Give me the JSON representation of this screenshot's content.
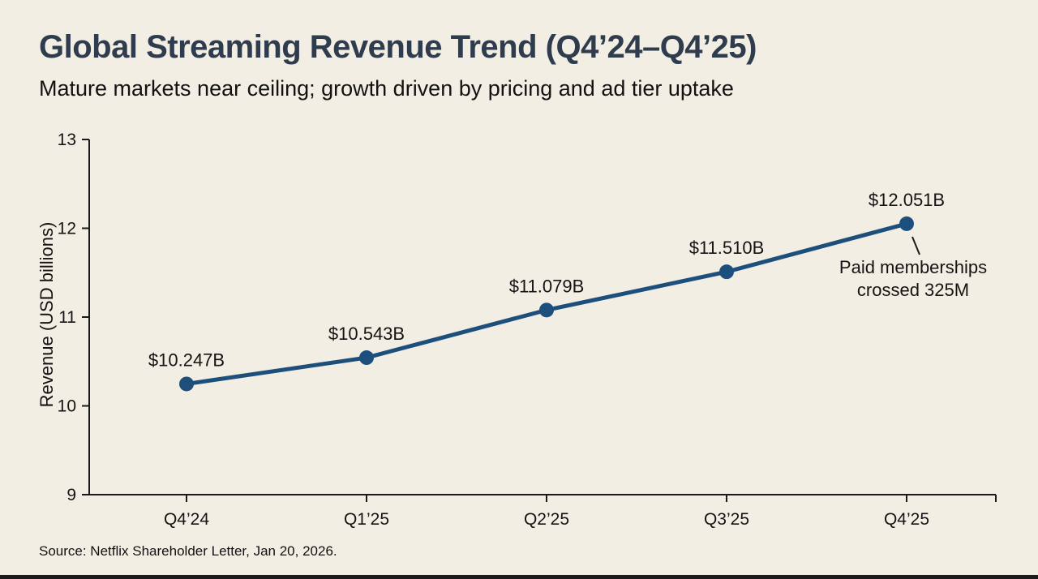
{
  "header": {
    "title": "Global Streaming Revenue Trend (Q4’24–Q4’25)",
    "subtitle": "Mature markets near ceiling; growth driven by pricing and ad tier uptake"
  },
  "footer": {
    "source": "Source: Netflix Shareholder Letter, Jan 20, 2026."
  },
  "chart_data": {
    "type": "line",
    "title": "Global Streaming Revenue Trend (Q4’24–Q4’25)",
    "subtitle": "Mature markets near ceiling; growth driven by pricing and ad tier uptake",
    "categories": [
      "Q4’24",
      "Q1’25",
      "Q2’25",
      "Q3’25",
      "Q4’25"
    ],
    "values": [
      10.247,
      10.543,
      11.079,
      11.51,
      12.051
    ],
    "point_labels": [
      "$10.247B",
      "$10.543B",
      "$11.079B",
      "$11.510B",
      "$12.051B"
    ],
    "xlabel": "",
    "ylabel": "Revenue (USD billions)",
    "ylim": [
      9,
      13
    ],
    "yticks": [
      13,
      12,
      11,
      10,
      9
    ],
    "grid": false,
    "legend": "none",
    "annotation": "Paid memberships\ncrossed 325M",
    "line_color": "#1d4f7c",
    "axis_color": "#1a1a1a",
    "background_color": "#f3eee3"
  }
}
